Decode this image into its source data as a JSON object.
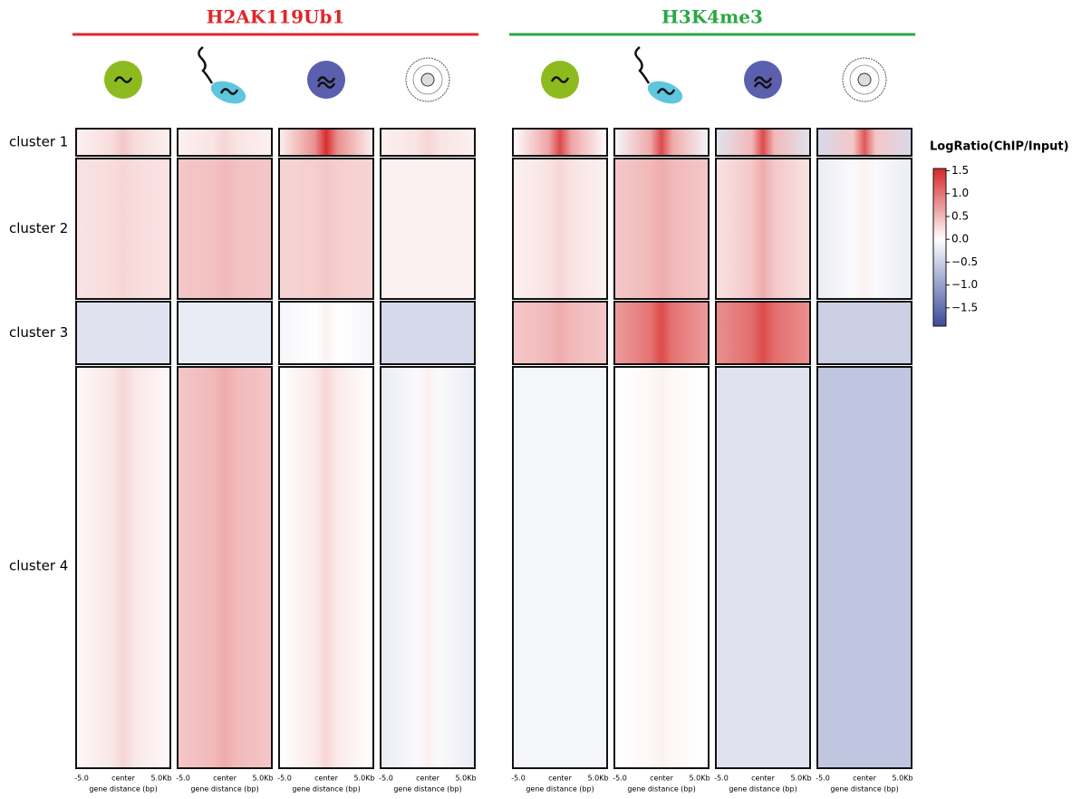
{
  "chart_data": {
    "type": "heatmap",
    "clusters": [
      "cluster 1",
      "cluster 2",
      "cluster 3",
      "cluster 4"
    ],
    "groups": [
      {
        "name": "H2AK119Ub1",
        "color": "#e0262b",
        "center": [
          [
            0.4,
            0.3,
            -0.3,
            0.3
          ],
          [
            0.3,
            0.5,
            -0.2,
            0.6
          ],
          [
            1.5,
            0.4,
            0.1,
            0.3
          ],
          [
            0.3,
            0.1,
            -0.4,
            0.1
          ]
        ],
        "flank": [
          [
            0.1,
            0.2,
            -0.3,
            0.05
          ],
          [
            0.1,
            0.4,
            -0.2,
            0.4
          ],
          [
            0.1,
            0.3,
            -0.1,
            0.0
          ],
          [
            0.1,
            0.1,
            -0.4,
            -0.2
          ]
        ]
      },
      {
        "name": "H3K4me3",
        "color": "#2ca745",
        "center": [
          [
            1.3,
            0.3,
            0.6,
            -0.1
          ],
          [
            1.3,
            0.6,
            1.3,
            0.1
          ],
          [
            1.3,
            0.6,
            1.3,
            -0.3
          ],
          [
            1.2,
            0.1,
            -0.5,
            -0.6
          ]
        ],
        "flank": [
          [
            0.0,
            0.1,
            0.4,
            -0.1
          ],
          [
            -0.1,
            0.4,
            0.7,
            0.0
          ],
          [
            -0.3,
            0.2,
            0.8,
            -0.3
          ],
          [
            -0.4,
            -0.2,
            -0.5,
            -0.6
          ]
        ]
      }
    ],
    "x_tick_labels": [
      "-5.0",
      "center",
      "5.0Kb"
    ],
    "x_label": "gene distance (bp)",
    "colorbar": {
      "title": "LogRatio(ChIP/Input)",
      "clim": [
        -1.9,
        1.55
      ],
      "low_color": "#3a4b9c",
      "high_color": "#d62728",
      "ticks": [
        1.5,
        {
          "value": 1,
          "label": "1.0"
        },
        0.5,
        {
          "value": 0,
          "label": "0.0"
        },
        {
          "value": -0.5,
          "label": "−0.5"
        },
        {
          "value": -1,
          "label": "−1.0"
        },
        {
          "value": -1.5,
          "label": "−1.5"
        }
      ]
    }
  }
}
